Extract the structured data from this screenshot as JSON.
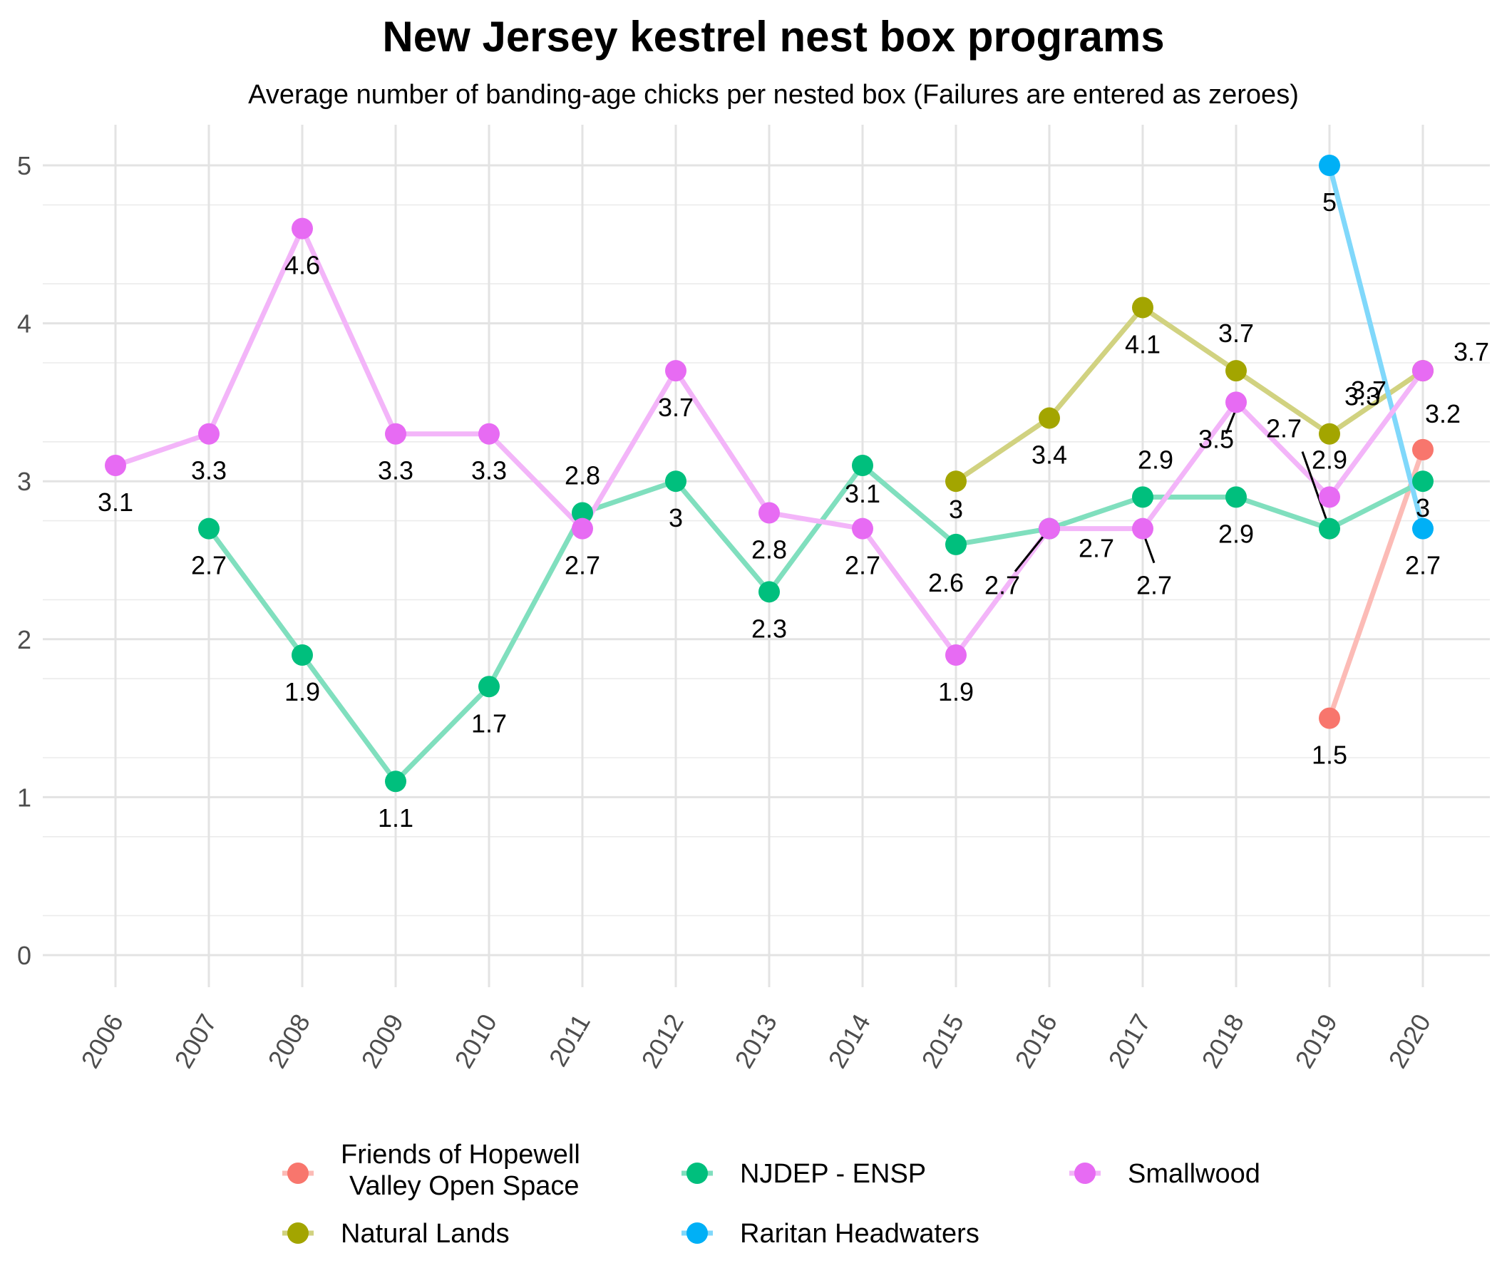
{
  "chart_data": {
    "type": "line",
    "title": "New Jersey kestrel nest box programs",
    "subtitle": "Average number of banding-age chicks per nested box (Failures are entered as zeroes)",
    "xlabel": "",
    "ylabel": "",
    "categories": [
      "2006",
      "2007",
      "2008",
      "2009",
      "2010",
      "2011",
      "2012",
      "2013",
      "2014",
      "2015",
      "2016",
      "2017",
      "2018",
      "2019",
      "2020"
    ],
    "ylim": [
      0,
      5
    ],
    "yticks": [
      "0",
      "1",
      "2",
      "3",
      "4",
      "5"
    ],
    "grid": true,
    "legend_position": "bottom",
    "series": [
      {
        "name": "Friends of Hopewell Valley Open Space",
        "legend_lines": [
          "Friends of Hopewell",
          "Valley Open Space"
        ],
        "color": "#F8766D",
        "values": [
          null,
          null,
          null,
          null,
          null,
          null,
          null,
          null,
          null,
          null,
          null,
          null,
          null,
          1.5,
          3.2
        ],
        "labels": [
          null,
          null,
          null,
          null,
          null,
          null,
          null,
          null,
          null,
          null,
          null,
          null,
          null,
          "1.5",
          "3.2"
        ]
      },
      {
        "name": "Natural Lands",
        "legend_lines": [
          "Natural Lands"
        ],
        "color": "#A3A500",
        "values": [
          null,
          null,
          null,
          null,
          null,
          null,
          null,
          null,
          null,
          3.0,
          3.4,
          4.1,
          3.7,
          3.3,
          3.7
        ],
        "labels": [
          null,
          null,
          null,
          null,
          null,
          null,
          null,
          null,
          null,
          "3",
          "3.4",
          "4.1",
          "3.7",
          "3.3",
          "3.7"
        ]
      },
      {
        "name": "NJDEP - ENSP",
        "legend_lines": [
          "NJDEP - ENSP"
        ],
        "color": "#00BF7D",
        "values": [
          null,
          2.7,
          1.9,
          1.1,
          1.7,
          2.8,
          3.0,
          2.3,
          3.1,
          2.6,
          2.7,
          2.9,
          2.9,
          2.7,
          3.0
        ],
        "labels": [
          null,
          "2.7",
          "1.9",
          "1.1",
          "1.7",
          "2.8",
          "3",
          "2.3",
          "3.1",
          "2.6",
          "2.7",
          "2.9",
          "2.9",
          "2.7",
          "3"
        ]
      },
      {
        "name": "Raritan Headwaters",
        "legend_lines": [
          "Raritan Headwaters"
        ],
        "color": "#00B0F6",
        "values": [
          null,
          null,
          null,
          null,
          null,
          null,
          null,
          null,
          null,
          null,
          null,
          null,
          null,
          5.0,
          2.7
        ],
        "labels": [
          null,
          null,
          null,
          null,
          null,
          null,
          null,
          null,
          null,
          null,
          null,
          null,
          null,
          "5",
          "2.7"
        ]
      },
      {
        "name": "Smallwood",
        "legend_lines": [
          "Smallwood"
        ],
        "color": "#E76BF3",
        "values": [
          3.1,
          3.3,
          4.6,
          3.3,
          3.3,
          2.7,
          3.7,
          2.8,
          2.7,
          1.9,
          2.7,
          2.7,
          3.5,
          2.9,
          3.7
        ],
        "labels": [
          "3.1",
          "3.3",
          "4.6",
          "3.3",
          "3.3",
          "2.7",
          "3.7",
          "2.8",
          "2.7",
          "1.9",
          "2.7",
          "2.7",
          "3.5",
          "2.9",
          "3.7"
        ]
      }
    ]
  }
}
